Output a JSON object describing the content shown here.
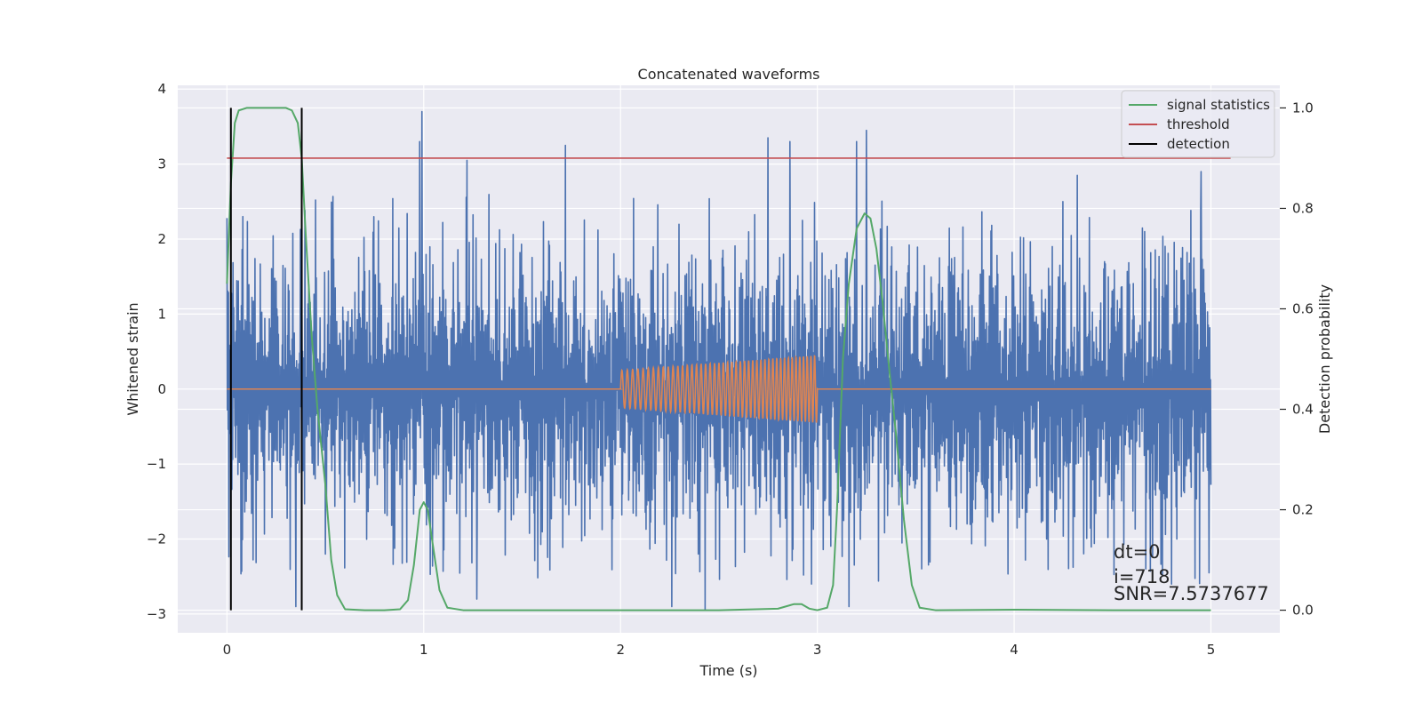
{
  "chart_data": {
    "type": "line",
    "title": "Concatenated waveforms",
    "xlabel": "Time (s)",
    "ylabel": "Whitened strain",
    "y2label": "Detection probability",
    "xlim": [
      -0.25,
      5.35
    ],
    "ylim": [
      -3.25,
      4.05
    ],
    "y2lim": [
      -0.045,
      1.045
    ],
    "xticks": [
      0,
      1,
      2,
      3,
      4,
      5
    ],
    "xtick_labels": [
      "0",
      "1",
      "2",
      "3",
      "4",
      "5"
    ],
    "yticks": [
      -3,
      -2,
      -1,
      0,
      1,
      2,
      3,
      4
    ],
    "ytick_labels": [
      "−3",
      "−2",
      "−1",
      "0",
      "1",
      "2",
      "3",
      "4"
    ],
    "y2ticks": [
      0.0,
      0.2,
      0.4,
      0.6,
      0.8,
      1.0
    ],
    "y2tick_labels": [
      "0.0",
      "0.2",
      "0.4",
      "0.6",
      "0.8",
      "1.0"
    ],
    "grid": true,
    "legend_position": "top-right",
    "series": [
      {
        "kind": "noise",
        "color": "#4c72b0",
        "axis": "left",
        "x_range": [
          0,
          5
        ],
        "typical_amplitude": 1.6,
        "peak_spikes": [
          {
            "x": 0.0,
            "y": 2.28
          },
          {
            "x": 0.08,
            "y": 2.3
          },
          {
            "x": 0.35,
            "y": -2.9
          },
          {
            "x": 0.5,
            "y": -2.2
          },
          {
            "x": 0.98,
            "y": 3.3
          },
          {
            "x": 0.99,
            "y": 3.7
          },
          {
            "x": 1.22,
            "y": 3.05
          },
          {
            "x": 1.27,
            "y": -2.8
          },
          {
            "x": 1.72,
            "y": 3.25
          },
          {
            "x": 2.26,
            "y": -2.9
          },
          {
            "x": 2.43,
            "y": -2.95
          },
          {
            "x": 2.75,
            "y": 3.35
          },
          {
            "x": 2.86,
            "y": 3.3
          },
          {
            "x": 2.97,
            "y": -2.6
          },
          {
            "x": 3.16,
            "y": -2.9
          },
          {
            "x": 3.2,
            "y": 3.3
          },
          {
            "x": 3.25,
            "y": 3.45
          },
          {
            "x": 4.32,
            "y": 2.85
          },
          {
            "x": 4.8,
            "y": -2.6
          },
          {
            "x": 4.95,
            "y": 2.9
          },
          {
            "x": 4.99,
            "y": -2.45
          }
        ]
      },
      {
        "kind": "chirp",
        "color": "#dd8452",
        "axis": "left",
        "baseline": 0,
        "x_range": [
          0,
          5
        ],
        "chirp_start": 2.0,
        "chirp_end": 3.0,
        "amplitude_start": 0.25,
        "amplitude_end": 0.45,
        "cycles": 45
      },
      {
        "name": "signal statistics",
        "color": "#55a868",
        "axis": "right",
        "x": [
          0.0,
          0.02,
          0.04,
          0.06,
          0.1,
          0.15,
          0.3,
          0.33,
          0.36,
          0.38,
          0.4,
          0.43,
          0.46,
          0.5,
          0.53,
          0.56,
          0.6,
          0.7,
          0.8,
          0.88,
          0.92,
          0.95,
          0.98,
          1.0,
          1.02,
          1.05,
          1.08,
          1.12,
          1.2,
          1.5,
          2.0,
          2.5,
          2.8,
          2.88,
          2.92,
          2.96,
          3.0,
          3.05,
          3.08,
          3.1,
          3.13,
          3.16,
          3.2,
          3.24,
          3.27,
          3.3,
          3.33,
          3.36,
          3.4,
          3.44,
          3.48,
          3.52,
          3.6,
          4.0,
          4.5,
          5.0
        ],
        "y": [
          0.65,
          0.85,
          0.97,
          0.995,
          1.0,
          1.0,
          1.0,
          0.995,
          0.97,
          0.9,
          0.75,
          0.55,
          0.4,
          0.25,
          0.1,
          0.03,
          0.002,
          0.0,
          0.0,
          0.002,
          0.02,
          0.09,
          0.2,
          0.215,
          0.2,
          0.12,
          0.04,
          0.005,
          0.0,
          0.0,
          0.0,
          0.0,
          0.003,
          0.012,
          0.012,
          0.003,
          0.0,
          0.005,
          0.05,
          0.2,
          0.5,
          0.65,
          0.76,
          0.79,
          0.78,
          0.72,
          0.62,
          0.5,
          0.35,
          0.18,
          0.05,
          0.005,
          0.0,
          0.001,
          0.0,
          0.0
        ]
      },
      {
        "name": "threshold",
        "color": "#c44e52",
        "axis": "right",
        "x": [
          0.0,
          5.1
        ],
        "y": [
          0.9,
          0.9
        ]
      },
      {
        "name": "detection",
        "color": "#000000",
        "axis": "right",
        "vlines": [
          0.02,
          0.38
        ],
        "y_range": [
          0.0,
          1.0
        ]
      }
    ],
    "annotations": [
      "dt=0",
      "i=718",
      "SNR=7.5737677"
    ]
  }
}
